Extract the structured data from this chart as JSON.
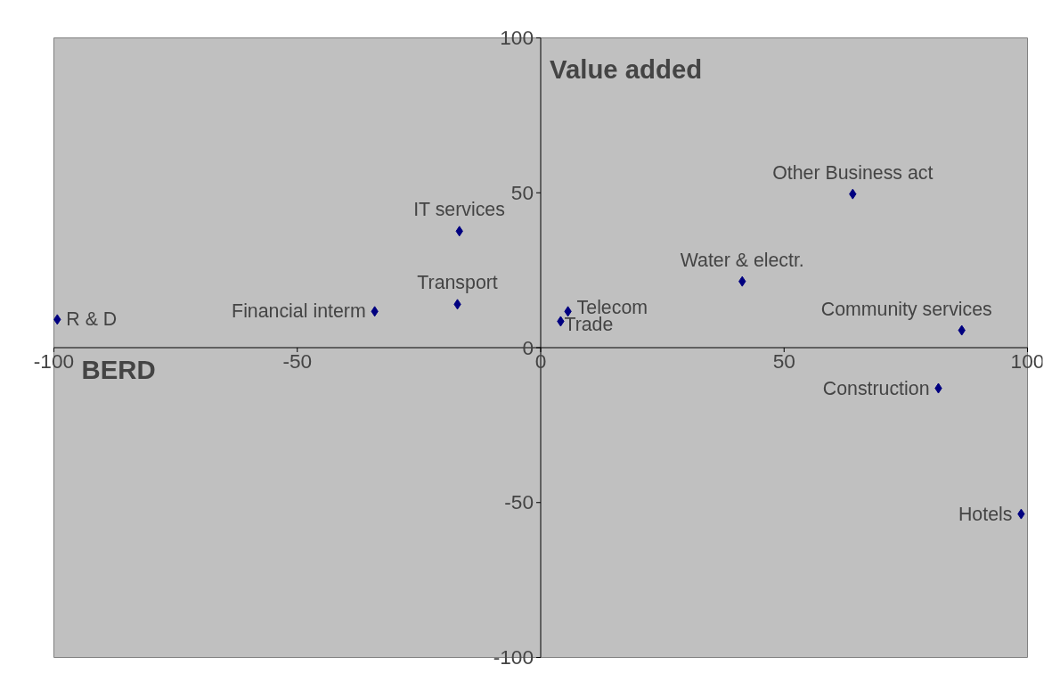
{
  "chart_data": {
    "type": "scatter",
    "xlabel": "BERD",
    "ylabel": "Value added",
    "xlim": [
      -100,
      100
    ],
    "ylim": [
      -100,
      100
    ],
    "xticks": [
      -100,
      -50,
      0,
      50,
      100
    ],
    "yticks": [
      -100,
      -50,
      0,
      50,
      100
    ],
    "grid": false,
    "marker": "diamond",
    "series": [
      {
        "color": "#000080",
        "x": [
          -99.3,
          -34.1,
          -17.1,
          -16.7,
          5.6,
          4.1,
          41.4,
          64.1,
          86.5,
          81.7,
          98.7
        ],
        "values": [
          9.1,
          11.7,
          14.0,
          37.6,
          11.7,
          8.5,
          21.4,
          49.6,
          5.6,
          -13.1,
          -53.7
        ]
      }
    ],
    "annotations": [
      {
        "text": "R & D",
        "x": -99.3,
        "y": 9.1
      },
      {
        "text": "Financial interm",
        "x": -34.1,
        "y": 11.7
      },
      {
        "text": "Transport",
        "x": -17.1,
        "y": 14.0
      },
      {
        "text": "IT services",
        "x": -16.7,
        "y": 37.6
      },
      {
        "text": "Telecom",
        "x": 5.6,
        "y": 11.7
      },
      {
        "text": "Trade",
        "x": 4.1,
        "y": 8.5
      },
      {
        "text": "Water & electr.",
        "x": 41.4,
        "y": 21.4
      },
      {
        "text": "Other Business act",
        "x": 64.1,
        "y": 49.6
      },
      {
        "text": "Community services",
        "x": 86.5,
        "y": 5.6
      },
      {
        "text": "Construction",
        "x": 81.7,
        "y": -13.1
      },
      {
        "text": "Hotels",
        "x": 98.7,
        "y": -53.7
      }
    ]
  }
}
